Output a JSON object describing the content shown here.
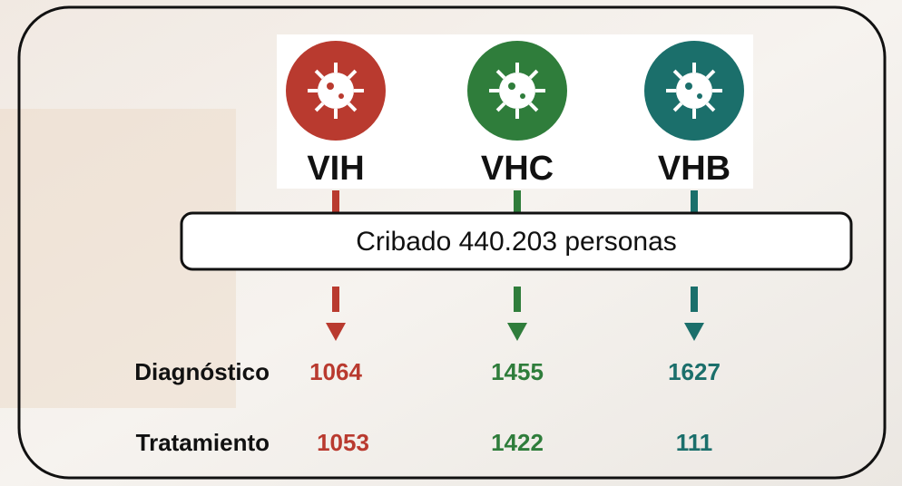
{
  "viruses": [
    {
      "label": "VIH",
      "color": "#b93a2f"
    },
    {
      "label": "VHC",
      "color": "#2f7d3b"
    },
    {
      "label": "VHB",
      "color": "#1b6f6b"
    }
  ],
  "screening": "Cribado 440.203 personas",
  "rows": [
    {
      "label": "Diagnóstico",
      "values": [
        1064,
        1455,
        1627
      ]
    },
    {
      "label": "Tratamiento",
      "values": [
        1053,
        1422,
        111
      ]
    }
  ]
}
